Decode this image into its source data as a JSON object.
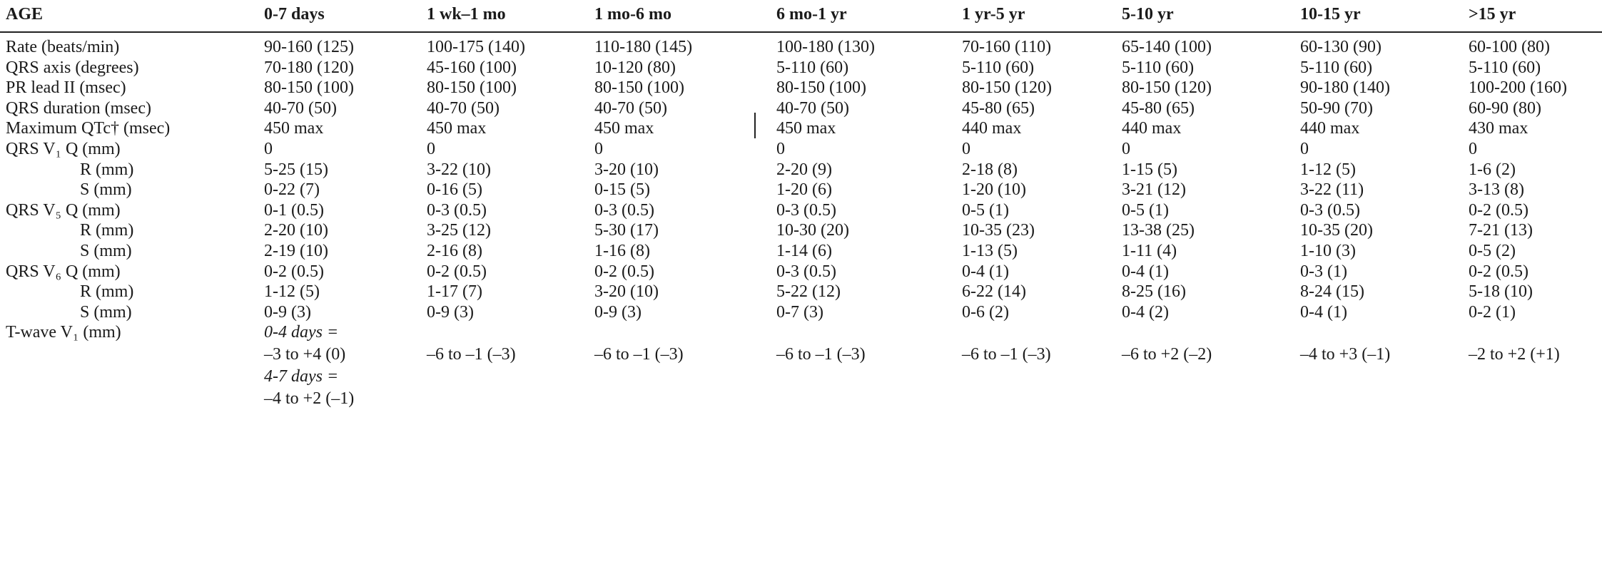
{
  "table": {
    "header": [
      "AGE",
      "0-7 days",
      "1 wk–1 mo",
      "1 mo-6 mo",
      "6 mo-1 yr",
      "1 yr-5 yr",
      "5-10 yr",
      "10-15 yr",
      ">15 yr"
    ],
    "rows": [
      {
        "label": "Rate (beats/min)",
        "cells": [
          "90-160 (125)",
          "100-175 (140)",
          "110-180 (145)",
          "100-180 (130)",
          "70-160 (110)",
          "65-140 (100)",
          "60-130 (90)",
          "60-100 (80)"
        ]
      },
      {
        "label": "QRS axis (degrees)",
        "cells": [
          "70-180 (120)",
          "45-160 (100)",
          "10-120 (80)",
          "5-110 (60)",
          "5-110 (60)",
          "5-110 (60)",
          "5-110 (60)",
          "5-110 (60)"
        ]
      },
      {
        "label": "PR lead II (msec)",
        "cells": [
          "80-150 (100)",
          "80-150 (100)",
          "80-150 (100)",
          "80-150 (100)",
          "80-150 (120)",
          "80-150 (120)",
          "90-180 (140)",
          "100-200 (160)"
        ]
      },
      {
        "label": "QRS duration (msec)",
        "cells": [
          "40-70 (50)",
          "40-70 (50)",
          "40-70 (50)",
          "40-70 (50)",
          "45-80 (65)",
          "45-80 (65)",
          "50-90 (70)",
          "60-90 (80)"
        ]
      },
      {
        "label": "Maximum QTc† (msec)",
        "cells": [
          "450 max",
          "450 max",
          "450 max",
          "450 max",
          "440 max",
          "440 max",
          "440 max",
          "430 max"
        ]
      },
      {
        "label": "QRS V₁ Q (mm)",
        "cells": [
          "0",
          "0",
          "0",
          "0",
          "0",
          "0",
          "0",
          "0"
        ]
      },
      {
        "label": "R (mm)",
        "cells": [
          "5-25 (15)",
          "3-22 (10)",
          "3-20 (10)",
          "2-20 (9)",
          "2-18 (8)",
          "1-15 (5)",
          "1-12 (5)",
          "1-6 (2)"
        ]
      },
      {
        "label": "S (mm)",
        "cells": [
          "0-22 (7)",
          "0-16 (5)",
          "0-15 (5)",
          "1-20 (6)",
          "1-20 (10)",
          "3-21 (12)",
          "3-22 (11)",
          "3-13 (8)"
        ]
      },
      {
        "label": "QRS V₅ Q (mm)",
        "cells": [
          "0-1 (0.5)",
          "0-3 (0.5)",
          "0-3 (0.5)",
          "0-3 (0.5)",
          "0-5 (1)",
          "0-5 (1)",
          "0-3 (0.5)",
          "0-2 (0.5)"
        ]
      },
      {
        "label": "R (mm)",
        "cells": [
          "2-20 (10)",
          "3-25 (12)",
          "5-30 (17)",
          "10-30 (20)",
          "10-35 (23)",
          "13-38 (25)",
          "10-35 (20)",
          "7-21 (13)"
        ]
      },
      {
        "label": "S (mm)",
        "cells": [
          "2-19 (10)",
          "2-16 (8)",
          "1-16 (8)",
          "1-14 (6)",
          "1-13 (5)",
          "1-11 (4)",
          "1-10 (3)",
          "0-5 (2)"
        ]
      },
      {
        "label": "QRS V₆ Q (mm)",
        "cells": [
          "0-2 (0.5)",
          "0-2 (0.5)",
          "0-2 (0.5)",
          "0-3 (0.5)",
          "0-4 (1)",
          "0-4 (1)",
          "0-3 (1)",
          "0-2 (0.5)"
        ]
      },
      {
        "label": "R (mm)",
        "cells": [
          "1-12 (5)",
          "1-17 (7)",
          "3-20 (10)",
          "5-22 (12)",
          "6-22 (14)",
          "8-25 (16)",
          "8-24 (15)",
          "5-18 (10)"
        ]
      },
      {
        "label": "S (mm)",
        "cells": [
          "0-9 (3)",
          "0-9 (3)",
          "0-9 (3)",
          "0-7 (3)",
          "0-6 (2)",
          "0-4 (2)",
          "0-4 (1)",
          "0-2 (1)"
        ]
      },
      {
        "label": "T-wave V₁ (mm)",
        "cells": [
          [
            "0-4 days =",
            "–3 to +4 (0)",
            "4-7 days =",
            "–4 to +2 (–1)"
          ],
          "–6 to –1 (–3)",
          "–6 to –1 (–3)",
          "–6 to –1 (–3)",
          "–6 to –1 (–3)",
          "–6 to +2 (–2)",
          "–4 to +3 (–1)",
          "–2 to +2 (+1)"
        ]
      }
    ]
  }
}
